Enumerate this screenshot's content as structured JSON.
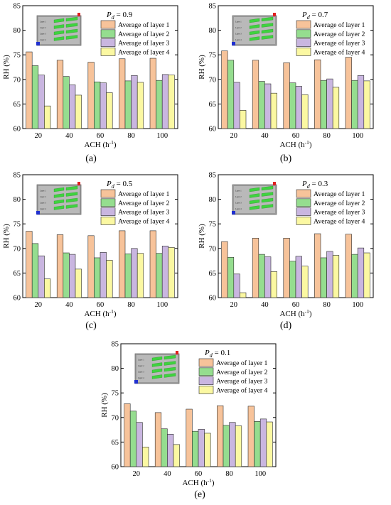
{
  "legend_labels": [
    "Average of layer 1",
    "Average of layer 2",
    "Average of layer 3",
    "Average of layer 4"
  ],
  "series_colors": [
    "#f7c39a",
    "#95dd8f",
    "#c9b6e0",
    "#fbf8a2"
  ],
  "inset": {
    "layer_labels": [
      "Layer 1",
      "Layer 2",
      "Layer 3",
      "Layer 4"
    ]
  },
  "chart_data": [
    {
      "type": "bar",
      "panel_label": "(a)",
      "annotation": "Pd = 0.9",
      "xlabel": "ACH (h-1)",
      "ylabel": "RH (%)",
      "categories": [
        "20",
        "40",
        "60",
        "80",
        "100"
      ],
      "ylim": [
        60,
        85
      ],
      "yticks": [
        60,
        65,
        70,
        75,
        80,
        85
      ],
      "legend_position": "top-right",
      "series": [
        {
          "name": "Average of layer 1",
          "values": [
            75.6,
            73.9,
            73.5,
            74.2,
            74.3
          ]
        },
        {
          "name": "Average of layer 2",
          "values": [
            72.8,
            70.6,
            69.5,
            69.7,
            69.8
          ]
        },
        {
          "name": "Average of layer 3",
          "values": [
            70.9,
            68.9,
            69.3,
            70.8,
            71.0
          ]
        },
        {
          "name": "Average of layer 4",
          "values": [
            64.6,
            66.8,
            67.3,
            69.4,
            70.9
          ]
        }
      ]
    },
    {
      "type": "bar",
      "panel_label": "(b)",
      "annotation": "Pd = 0.7",
      "xlabel": "ACH (h-1)",
      "ylabel": "RH (%)",
      "categories": [
        "20",
        "40",
        "60",
        "80",
        "100"
      ],
      "ylim": [
        60,
        85
      ],
      "yticks": [
        60,
        65,
        70,
        75,
        80,
        85
      ],
      "legend_position": "top-right",
      "series": [
        {
          "name": "Average of layer 1",
          "values": [
            75.8,
            73.9,
            73.4,
            74.0,
            74.5
          ]
        },
        {
          "name": "Average of layer 2",
          "values": [
            73.9,
            69.6,
            69.3,
            69.8,
            69.8
          ]
        },
        {
          "name": "Average of layer 3",
          "values": [
            69.4,
            69.1,
            68.6,
            70.1,
            70.8
          ]
        },
        {
          "name": "Average of layer 4",
          "values": [
            63.7,
            67.2,
            66.9,
            68.4,
            69.7
          ]
        }
      ]
    },
    {
      "type": "bar",
      "panel_label": "(c)",
      "annotation": "Pd = 0.5",
      "xlabel": "ACH (h-1)",
      "ylabel": "RH (%)",
      "categories": [
        "20",
        "40",
        "60",
        "80",
        "100"
      ],
      "ylim": [
        60,
        85
      ],
      "yticks": [
        60,
        65,
        70,
        75,
        80,
        85
      ],
      "legend_position": "top-right",
      "series": [
        {
          "name": "Average of layer 1",
          "values": [
            73.5,
            72.8,
            72.6,
            73.6,
            73.6
          ]
        },
        {
          "name": "Average of layer 2",
          "values": [
            71.0,
            69.1,
            68.1,
            68.9,
            69.0
          ]
        },
        {
          "name": "Average of layer 3",
          "values": [
            68.5,
            68.8,
            69.2,
            70.0,
            70.5
          ]
        },
        {
          "name": "Average of layer 4",
          "values": [
            63.8,
            65.8,
            67.6,
            69.0,
            70.2
          ]
        }
      ]
    },
    {
      "type": "bar",
      "panel_label": "(d)",
      "annotation": "Pd = 0.3",
      "xlabel": "ACH (h-1)",
      "ylabel": "RH (%)",
      "categories": [
        "20",
        "40",
        "60",
        "80",
        "100"
      ],
      "ylim": [
        60,
        85
      ],
      "yticks": [
        60,
        65,
        70,
        75,
        80,
        85
      ],
      "legend_position": "top-right",
      "series": [
        {
          "name": "Average of layer 1",
          "values": [
            71.4,
            72.1,
            72.1,
            73.0,
            72.9
          ]
        },
        {
          "name": "Average of layer 2",
          "values": [
            68.2,
            68.8,
            67.4,
            68.1,
            68.8
          ]
        },
        {
          "name": "Average of layer 3",
          "values": [
            64.8,
            68.3,
            68.4,
            69.4,
            70.1
          ]
        },
        {
          "name": "Average of layer 4",
          "values": [
            61.0,
            65.3,
            66.4,
            68.6,
            69.1
          ]
        }
      ]
    },
    {
      "type": "bar",
      "panel_label": "(e)",
      "annotation": "Pd = 0.1",
      "xlabel": "ACH (h-1)",
      "ylabel": "RH (%)",
      "categories": [
        "20",
        "40",
        "60",
        "80",
        "100"
      ],
      "ylim": [
        60,
        85
      ],
      "yticks": [
        60,
        65,
        70,
        75,
        80,
        85
      ],
      "legend_position": "top-right",
      "series": [
        {
          "name": "Average of layer 1",
          "values": [
            72.8,
            71.0,
            71.7,
            72.4,
            72.3
          ]
        },
        {
          "name": "Average of layer 2",
          "values": [
            71.3,
            67.7,
            67.2,
            68.4,
            69.2
          ]
        },
        {
          "name": "Average of layer 3",
          "values": [
            69.0,
            66.6,
            67.6,
            69.0,
            69.7
          ]
        },
        {
          "name": "Average of layer 4",
          "values": [
            64.0,
            64.5,
            66.8,
            68.3,
            69.1
          ]
        }
      ]
    }
  ]
}
